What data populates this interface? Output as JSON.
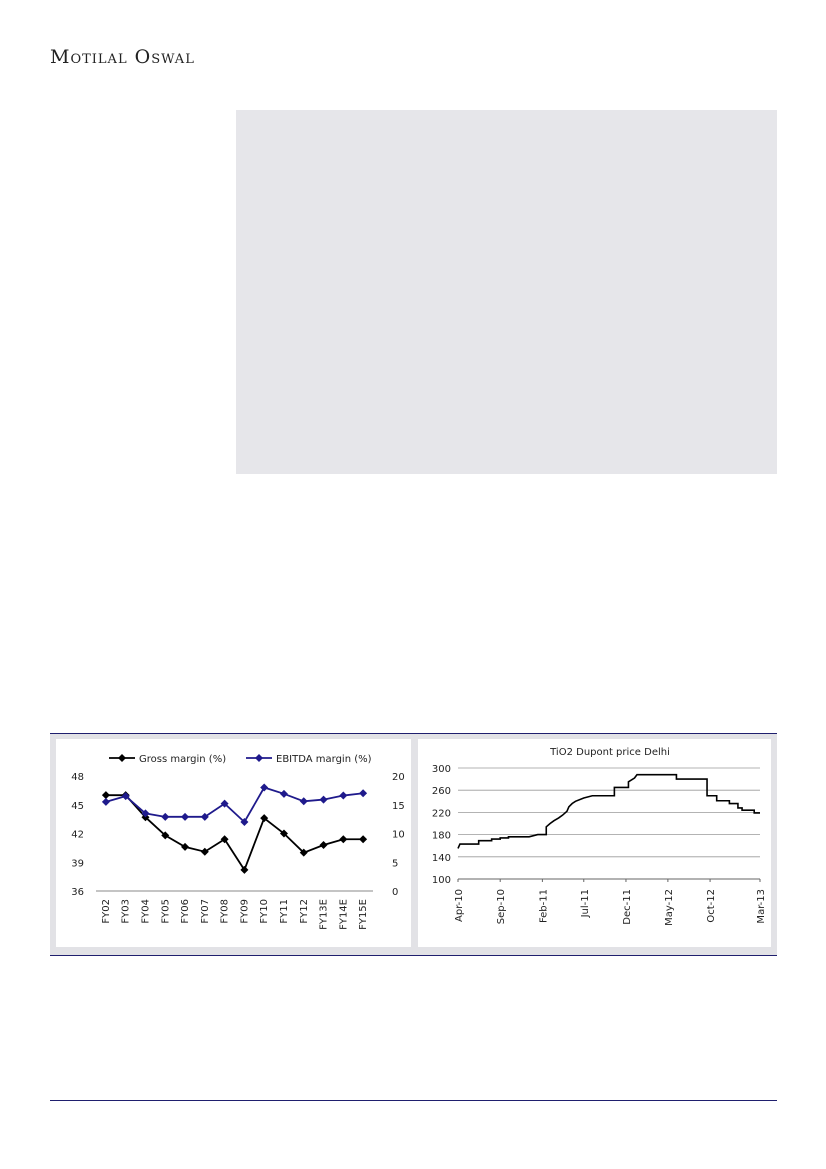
{
  "header": {
    "brand": "Motilal Oswal"
  },
  "chart_data": [
    {
      "type": "line",
      "categories": [
        "FY02",
        "FY03",
        "FY04",
        "FY05",
        "FY06",
        "FY07",
        "FY08",
        "FY09",
        "FY10",
        "FY11",
        "FY12",
        "FY13E",
        "FY14E",
        "FY15E"
      ],
      "series": [
        {
          "name": "Gross margin (%)",
          "axis": "left",
          "color": "#000000",
          "values": [
            46.0,
            46.0,
            43.7,
            41.8,
            40.6,
            40.1,
            41.4,
            38.2,
            43.6,
            42.0,
            40.0,
            40.8,
            41.4,
            41.4
          ]
        },
        {
          "name": "EBITDA margin (%)",
          "axis": "right",
          "color": "#1f1a8c",
          "values": [
            15.5,
            16.5,
            13.5,
            12.9,
            12.9,
            12.9,
            15.2,
            12.0,
            18.0,
            16.9,
            15.6,
            15.9,
            16.6,
            17.0
          ]
        }
      ],
      "y_left": {
        "ticks": [
          36,
          39,
          42,
          45,
          48
        ],
        "ylim": [
          36,
          48
        ]
      },
      "y_right": {
        "ticks": [
          0,
          5,
          10,
          15,
          20
        ],
        "ylim": [
          0,
          20
        ]
      },
      "legend_position": "top",
      "grid": false
    },
    {
      "type": "line",
      "title": "TiO2 Dupont price Delhi",
      "x_ticks": [
        "Apr-10",
        "Sep-10",
        "Feb-11",
        "Jul-11",
        "Dec-11",
        "May-12",
        "Oct-12",
        "Mar-13"
      ],
      "y_ticks": [
        100,
        140,
        180,
        220,
        260,
        300
      ],
      "ylim": [
        100,
        300
      ],
      "grid": true,
      "color": "#000000",
      "series": [
        {
          "points": [
            [
              "2010-04-01",
              155
            ],
            [
              "2010-04-08",
              163
            ],
            [
              "2010-06-15",
              163
            ],
            [
              "2010-06-15",
              169
            ],
            [
              "2010-08-01",
              169
            ],
            [
              "2010-08-01",
              172
            ],
            [
              "2010-09-01",
              172
            ],
            [
              "2010-09-01",
              174
            ],
            [
              "2010-10-01",
              174
            ],
            [
              "2010-10-01",
              176
            ],
            [
              "2010-12-15",
              176
            ],
            [
              "2011-01-15",
              180
            ],
            [
              "2011-02-15",
              180
            ],
            [
              "2011-02-15",
              194
            ],
            [
              "2011-03-01",
              200
            ],
            [
              "2011-03-15",
              205
            ],
            [
              "2011-04-01",
              210
            ],
            [
              "2011-04-15",
              215
            ],
            [
              "2011-05-01",
              222
            ],
            [
              "2011-05-08",
              230
            ],
            [
              "2011-05-20",
              236
            ],
            [
              "2011-06-01",
              240
            ],
            [
              "2011-07-01",
              246
            ],
            [
              "2011-08-01",
              250
            ],
            [
              "2011-10-20",
              250
            ],
            [
              "2011-10-20",
              265
            ],
            [
              "2011-12-10",
              265
            ],
            [
              "2011-12-10",
              275
            ],
            [
              "2012-01-01",
              282
            ],
            [
              "2012-01-10",
              288
            ],
            [
              "2012-06-01",
              288
            ],
            [
              "2012-06-01",
              280
            ],
            [
              "2012-09-20",
              280
            ],
            [
              "2012-09-20",
              250
            ],
            [
              "2012-10-25",
              250
            ],
            [
              "2012-10-25",
              241
            ],
            [
              "2012-12-10",
              241
            ],
            [
              "2012-12-10",
              236
            ],
            [
              "2013-01-10",
              236
            ],
            [
              "2013-01-10",
              228
            ],
            [
              "2013-01-25",
              228
            ],
            [
              "2013-01-25",
              224
            ],
            [
              "2013-03-10",
              224
            ],
            [
              "2013-03-10",
              219
            ],
            [
              "2013-03-31",
              219
            ]
          ]
        }
      ]
    }
  ]
}
